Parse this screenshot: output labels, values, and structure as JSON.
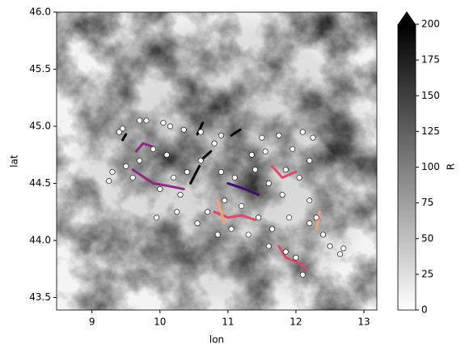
{
  "chart_data": {
    "type": "scatter",
    "x_label": "lon",
    "y_label": "lat",
    "xlim": [
      8.48,
      13.19
    ],
    "ylim": [
      43.39,
      46.0
    ],
    "xticks": [
      9,
      10,
      11,
      12,
      13
    ],
    "yticks": [
      {
        "value": 43.5,
        "label": "43.5"
      },
      {
        "value": 44.0,
        "label": "44.0"
      },
      44.5,
      {
        "value": 45.0,
        "label": "45.0"
      },
      45.5,
      {
        "value": 46.0,
        "label": "46.0"
      }
    ],
    "color": "#ffffff",
    "x": [
      9.45,
      9.4,
      9.7,
      9.8,
      10.05,
      10.15,
      10.35,
      10.6,
      10.9,
      11.5,
      11.75,
      12.1,
      12.25,
      11.95,
      12.2,
      9.3,
      9.25,
      9.5,
      9.7,
      9.9,
      10.1,
      10.4,
      10.6,
      10.9,
      11.1,
      11.4,
      11.6,
      11.8,
      12.05,
      12.2,
      10.0,
      10.3,
      10.7,
      10.95,
      11.2,
      11.45,
      11.65,
      11.9,
      12.2,
      12.3,
      10.55,
      10.85,
      11.05,
      11.3,
      11.6,
      11.85,
      12.0,
      12.1,
      12.4,
      12.5,
      12.7,
      12.65,
      9.95,
      10.25,
      10.8,
      11.35,
      11.55,
      11.85,
      9.6,
      10.2
    ],
    "y": [
      44.98,
      44.95,
      45.05,
      45.05,
      45.03,
      45.0,
      44.97,
      44.95,
      44.92,
      44.9,
      44.92,
      44.95,
      44.9,
      44.8,
      44.7,
      44.6,
      44.52,
      44.65,
      44.7,
      44.8,
      44.75,
      44.6,
      44.7,
      44.6,
      44.55,
      44.62,
      44.5,
      44.4,
      44.55,
      44.35,
      44.45,
      44.4,
      44.25,
      44.35,
      44.3,
      44.2,
      44.1,
      44.2,
      44.15,
      44.2,
      44.15,
      44.05,
      44.1,
      44.05,
      43.95,
      43.9,
      43.85,
      43.7,
      44.05,
      43.95,
      43.93,
      43.88,
      44.2,
      44.25,
      44.85,
      44.75,
      44.78,
      44.62,
      44.55,
      44.55
    ],
    "tracks": [
      {
        "color": "#000000",
        "x": [
          10.55,
          10.63
        ],
        "y": [
          44.93,
          45.03
        ]
      },
      {
        "color": "#000000",
        "x": [
          11.05,
          11.18
        ],
        "y": [
          44.92,
          44.97
        ]
      },
      {
        "color": "#000000",
        "x": [
          10.45,
          10.58
        ],
        "y": [
          44.5,
          44.65
        ]
      },
      {
        "color": "#000000",
        "x": [
          10.6,
          10.75
        ],
        "y": [
          44.7,
          44.78
        ]
      },
      {
        "color": "#000000",
        "x": [
          9.45,
          9.5
        ],
        "y": [
          44.88,
          44.93
        ]
      },
      {
        "color": "#8c2981",
        "x": [
          9.6,
          9.9,
          10.1,
          10.35
        ],
        "y": [
          44.62,
          44.5,
          44.48,
          44.45
        ]
      },
      {
        "color": "#de4968",
        "x": [
          10.8,
          11.0,
          11.2,
          11.4
        ],
        "y": [
          44.25,
          44.2,
          44.22,
          44.18
        ]
      },
      {
        "color": "#fe9f6d",
        "x": [
          10.85,
          10.9,
          10.95
        ],
        "y": [
          44.35,
          44.25,
          44.15
        ]
      },
      {
        "color": "#3b0f70",
        "x": [
          11.0,
          11.25,
          11.45
        ],
        "y": [
          44.5,
          44.45,
          44.4
        ]
      },
      {
        "color": "#de4968",
        "x": [
          11.75,
          11.85,
          12.05,
          12.15
        ],
        "y": [
          43.95,
          43.85,
          43.8,
          43.75
        ]
      },
      {
        "color": "#8c2981",
        "x": [
          9.9,
          9.75,
          9.65
        ],
        "y": [
          44.82,
          44.85,
          44.78
        ]
      },
      {
        "color": "#de4968",
        "x": [
          11.65,
          11.8,
          12.0
        ],
        "y": [
          44.65,
          44.55,
          44.6
        ]
      },
      {
        "color": "#fe9f6d",
        "x": [
          12.3,
          12.35
        ],
        "y": [
          44.1,
          44.25
        ]
      }
    ],
    "colorbar": {
      "label": "R",
      "lim": [
        0,
        200
      ],
      "ticks": [
        0,
        25,
        50,
        75,
        100,
        125,
        150,
        175,
        200
      ],
      "extend": "max"
    }
  }
}
